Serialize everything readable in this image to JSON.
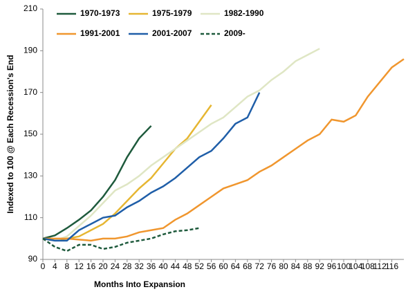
{
  "chart_data": {
    "type": "line",
    "x_label": "Months Into Expansion",
    "y_label": "Indexed to 100 @ Each Recession's End",
    "x": [
      0,
      4,
      8,
      12,
      16,
      20,
      24,
      28,
      32,
      36,
      40,
      44,
      48,
      52,
      56,
      60,
      64,
      68,
      72,
      76,
      80,
      84,
      88,
      92,
      96,
      100,
      104,
      108,
      112,
      116,
      120
    ],
    "series": [
      {
        "name": "1970-1973",
        "color": "#1e5a3c",
        "dash": false,
        "values": [
          100,
          101.5,
          105,
          109,
          113.5,
          120,
          128,
          139,
          148,
          154,
          null,
          null,
          null,
          null,
          null,
          null,
          null,
          null,
          null,
          null,
          null,
          null,
          null,
          null,
          null,
          null,
          null,
          null,
          null,
          null,
          null
        ]
      },
      {
        "name": "1975-1979",
        "color": "#e6b632",
        "dash": false,
        "values": [
          100,
          99,
          100,
          101,
          104,
          107,
          112,
          118,
          124,
          129,
          136,
          143,
          148,
          156,
          164,
          null,
          null,
          null,
          null,
          null,
          null,
          null,
          null,
          null,
          null,
          null,
          null,
          null,
          null,
          null,
          null
        ]
      },
      {
        "name": "1982-1990",
        "color": "#dfe6c4",
        "dash": false,
        "values": [
          100,
          99,
          101,
          106,
          111,
          117,
          123,
          126,
          130,
          135,
          139,
          143,
          147,
          151,
          155,
          158,
          163,
          168,
          171,
          176,
          180,
          185,
          188,
          191,
          null,
          null,
          null,
          null,
          null,
          null,
          null
        ]
      },
      {
        "name": "1991-2001",
        "color": "#f0962e",
        "dash": false,
        "values": [
          100,
          100,
          100,
          99.5,
          99,
          100,
          100,
          101,
          103,
          104,
          105,
          109,
          112,
          116,
          120,
          124,
          126,
          128,
          132,
          135,
          139,
          143,
          147,
          150,
          157,
          156,
          159,
          168,
          175,
          182,
          186
        ]
      },
      {
        "name": "2001-2007",
        "color": "#1f5ea8",
        "dash": false,
        "values": [
          100,
          99,
          99,
          104,
          107,
          110,
          111,
          115,
          118,
          122,
          125,
          129,
          134,
          139,
          142,
          148,
          155,
          158,
          170,
          null,
          null,
          null,
          null,
          null,
          null,
          null,
          null,
          null,
          null,
          null,
          null
        ]
      },
      {
        "name": "2009-",
        "color": "#1e5a3c",
        "dash": true,
        "values": [
          100,
          96,
          94,
          97,
          97,
          95,
          96,
          98,
          99,
          100,
          102,
          103.5,
          104,
          105,
          null,
          null,
          null,
          null,
          null,
          null,
          null,
          null,
          null,
          null,
          null,
          null,
          null,
          null,
          null,
          null,
          null
        ]
      }
    ],
    "xlim": [
      0,
      120
    ],
    "xticks": [
      0,
      4,
      8,
      12,
      16,
      20,
      24,
      28,
      32,
      36,
      40,
      44,
      48,
      52,
      56,
      60,
      64,
      68,
      72,
      76,
      80,
      84,
      88,
      92,
      96,
      100,
      104,
      108,
      112,
      116
    ],
    "ylim": [
      90,
      210
    ],
    "yticks": [
      90,
      110,
      130,
      150,
      170,
      190,
      210
    ]
  }
}
